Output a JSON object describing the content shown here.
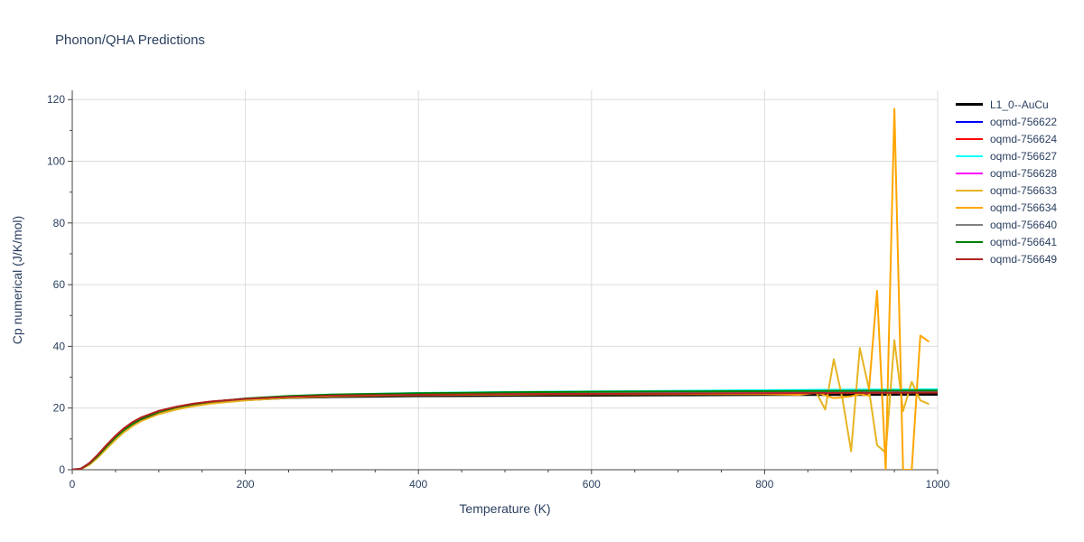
{
  "chart_data": {
    "type": "line",
    "title": "Phonon/QHA Predictions",
    "xlabel": "Temperature (K)",
    "ylabel": "Cp numerical (J/K/mol)",
    "xlim": [
      0,
      1000
    ],
    "ylim": [
      0,
      123
    ],
    "xticks": [
      0,
      200,
      400,
      600,
      800,
      1000
    ],
    "yticks": [
      0,
      20,
      40,
      60,
      80,
      100,
      120
    ],
    "grid": true,
    "legend_position": "top-right outside",
    "series": [
      {
        "name": "L1_0--AuCu",
        "color": "#000000",
        "x": [
          0,
          10,
          20,
          30,
          40,
          50,
          60,
          70,
          80,
          100,
          120,
          140,
          160,
          200,
          250,
          300,
          400,
          500,
          600,
          700,
          800,
          900,
          1000
        ],
        "values": [
          0,
          0.3,
          2.0,
          4.6,
          7.6,
          10.4,
          12.9,
          14.9,
          16.4,
          18.5,
          19.9,
          20.9,
          21.6,
          22.6,
          23.3,
          23.6,
          23.9,
          24.0,
          24.1,
          24.2,
          24.3,
          24.3,
          24.4
        ]
      },
      {
        "name": "oqmd-756622",
        "color": "#0000ff",
        "x": [
          0,
          10,
          20,
          30,
          40,
          50,
          60,
          70,
          80,
          100,
          120,
          140,
          160,
          200,
          250,
          300,
          400,
          500,
          600,
          700,
          800,
          900,
          1000
        ],
        "values": [
          0,
          0.3,
          2.1,
          4.8,
          7.9,
          10.8,
          13.3,
          15.3,
          16.8,
          18.9,
          20.3,
          21.3,
          22.0,
          23.0,
          23.7,
          24.1,
          24.5,
          24.7,
          24.9,
          25.0,
          25.1,
          25.2,
          25.3
        ]
      },
      {
        "name": "oqmd-756624",
        "color": "#ff0000",
        "x": [
          0,
          10,
          20,
          30,
          40,
          50,
          60,
          70,
          80,
          100,
          120,
          140,
          160,
          200,
          250,
          300,
          400,
          500,
          600,
          700,
          800,
          900,
          1000
        ],
        "values": [
          0,
          0.3,
          2.2,
          5.0,
          8.1,
          11.0,
          13.5,
          15.5,
          17.0,
          19.1,
          20.4,
          21.4,
          22.1,
          23.0,
          23.7,
          24.1,
          24.5,
          24.7,
          24.9,
          25.0,
          25.1,
          25.2,
          25.3
        ]
      },
      {
        "name": "oqmd-756627",
        "color": "#00ffff",
        "x": [
          0,
          10,
          20,
          30,
          40,
          50,
          60,
          70,
          80,
          100,
          120,
          140,
          160,
          200,
          250,
          300,
          400,
          500,
          600,
          700,
          800,
          900,
          1000
        ],
        "values": [
          0,
          0.3,
          2.0,
          4.6,
          7.6,
          10.5,
          13.0,
          15.0,
          16.6,
          18.8,
          20.2,
          21.2,
          22.0,
          23.1,
          23.9,
          24.4,
          24.9,
          25.2,
          25.4,
          25.6,
          25.8,
          26.0,
          26.1
        ]
      },
      {
        "name": "oqmd-756628",
        "color": "#ff00ff",
        "x": [
          0,
          10,
          20,
          30,
          40,
          50,
          60,
          70,
          80,
          100,
          120,
          140,
          160,
          200,
          250,
          300,
          400,
          500,
          600,
          700,
          800,
          900,
          1000
        ],
        "values": [
          0,
          0.3,
          2.1,
          4.8,
          7.9,
          10.8,
          13.3,
          15.3,
          16.8,
          18.9,
          20.3,
          21.3,
          22.0,
          23.0,
          23.7,
          24.1,
          24.5,
          24.8,
          25.0,
          25.1,
          25.2,
          25.3,
          25.4
        ]
      },
      {
        "name": "oqmd-756633",
        "color": "#e6b422",
        "x": [
          0,
          10,
          20,
          30,
          40,
          50,
          60,
          70,
          80,
          100,
          120,
          140,
          160,
          200,
          250,
          300,
          400,
          500,
          600,
          700,
          800,
          850,
          860,
          870,
          880,
          890,
          900,
          910,
          920,
          930,
          940,
          950,
          960,
          970,
          980,
          990
        ],
        "values": [
          0,
          0.2,
          1.6,
          4.0,
          6.9,
          9.7,
          12.2,
          14.2,
          15.8,
          18.0,
          19.5,
          20.6,
          21.4,
          22.5,
          23.3,
          23.8,
          24.2,
          24.4,
          24.5,
          24.6,
          24.7,
          24.8,
          24.9,
          19.5,
          35.8,
          23.0,
          6.0,
          39.5,
          27.0,
          8.0,
          5.5,
          42.0,
          19.0,
          28.5,
          22.5,
          21.3
        ]
      },
      {
        "name": "oqmd-756634",
        "color": "#ffa500",
        "x": [
          0,
          10,
          20,
          30,
          40,
          50,
          60,
          70,
          80,
          100,
          120,
          140,
          160,
          200,
          250,
          300,
          400,
          500,
          600,
          700,
          800,
          840,
          860,
          880,
          900,
          910,
          920,
          930,
          940,
          950,
          960,
          970,
          980,
          990
        ],
        "values": [
          0,
          0.3,
          2.0,
          4.7,
          7.7,
          10.6,
          13.1,
          15.1,
          16.6,
          18.7,
          20.1,
          21.1,
          21.8,
          22.9,
          23.6,
          24.0,
          24.3,
          24.4,
          24.5,
          24.5,
          24.5,
          24.3,
          25.0,
          23.2,
          23.8,
          24.5,
          24.0,
          58.0,
          0,
          117.0,
          0,
          0,
          43.5,
          41.5
        ]
      },
      {
        "name": "oqmd-756640",
        "color": "#808080",
        "x": [
          0,
          10,
          20,
          30,
          40,
          50,
          60,
          70,
          80,
          100,
          120,
          140,
          160,
          200,
          250,
          300,
          400,
          500,
          600,
          700,
          800,
          900,
          1000
        ],
        "values": [
          0,
          0.3,
          2.1,
          4.8,
          7.9,
          10.8,
          13.3,
          15.3,
          16.8,
          18.9,
          20.3,
          21.3,
          22.0,
          23.0,
          23.7,
          24.2,
          24.6,
          24.9,
          25.1,
          25.3,
          25.4,
          25.5,
          25.6
        ]
      },
      {
        "name": "oqmd-756641",
        "color": "#008000",
        "x": [
          0,
          10,
          20,
          30,
          40,
          50,
          60,
          70,
          80,
          100,
          120,
          140,
          160,
          200,
          250,
          300,
          400,
          500,
          600,
          700,
          800,
          900,
          1000
        ],
        "values": [
          0,
          0.3,
          2.0,
          4.6,
          7.6,
          10.5,
          13.0,
          15.0,
          16.6,
          18.8,
          20.2,
          21.2,
          22.0,
          23.1,
          23.9,
          24.4,
          24.8,
          25.1,
          25.3,
          25.4,
          25.5,
          25.6,
          25.7
        ]
      },
      {
        "name": "oqmd-756649",
        "color": "#b22222",
        "x": [
          0,
          10,
          20,
          30,
          40,
          50,
          60,
          70,
          80,
          100,
          120,
          140,
          160,
          200,
          250,
          300,
          400,
          500,
          600,
          700,
          800,
          900,
          1000
        ],
        "values": [
          0,
          0.3,
          2.2,
          5.0,
          8.1,
          11.0,
          13.5,
          15.5,
          17.0,
          19.1,
          20.4,
          21.4,
          22.1,
          23.0,
          23.6,
          24.0,
          24.3,
          24.5,
          24.6,
          24.7,
          24.8,
          24.9,
          25.0
        ]
      }
    ]
  }
}
